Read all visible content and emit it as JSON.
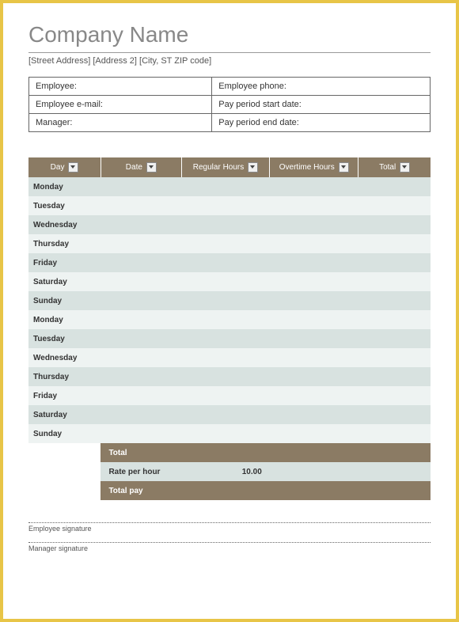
{
  "header": {
    "company_name": "Company Name",
    "address_parts": {
      "street": "[Street Address]",
      "address2": "[Address 2]",
      "city_state_zip": "[City, ST ZIP code]"
    }
  },
  "info": {
    "employee_label": "Employee:",
    "employee_phone_label": "Employee phone:",
    "employee_email_label": "Employee e-mail:",
    "pay_start_label": "Pay period start date:",
    "manager_label": "Manager:",
    "pay_end_label": "Pay period end date:"
  },
  "timesheet": {
    "columns": [
      {
        "label": "Day"
      },
      {
        "label": "Date"
      },
      {
        "label": "Regular Hours"
      },
      {
        "label": "Overtime Hours"
      },
      {
        "label": "Total"
      }
    ],
    "rows": [
      {
        "day": "Monday",
        "date": "",
        "regular": "",
        "overtime": "",
        "total": ""
      },
      {
        "day": "Tuesday",
        "date": "",
        "regular": "",
        "overtime": "",
        "total": ""
      },
      {
        "day": "Wednesday",
        "date": "",
        "regular": "",
        "overtime": "",
        "total": ""
      },
      {
        "day": "Thursday",
        "date": "",
        "regular": "",
        "overtime": "",
        "total": ""
      },
      {
        "day": "Friday",
        "date": "",
        "regular": "",
        "overtime": "",
        "total": ""
      },
      {
        "day": "Saturday",
        "date": "",
        "regular": "",
        "overtime": "",
        "total": ""
      },
      {
        "day": "Sunday",
        "date": "",
        "regular": "",
        "overtime": "",
        "total": ""
      },
      {
        "day": "Monday",
        "date": "",
        "regular": "",
        "overtime": "",
        "total": ""
      },
      {
        "day": "Tuesday",
        "date": "",
        "regular": "",
        "overtime": "",
        "total": ""
      },
      {
        "day": "Wednesday",
        "date": "",
        "regular": "",
        "overtime": "",
        "total": ""
      },
      {
        "day": "Thursday",
        "date": "",
        "regular": "",
        "overtime": "",
        "total": ""
      },
      {
        "day": "Friday",
        "date": "",
        "regular": "",
        "overtime": "",
        "total": ""
      },
      {
        "day": "Saturday",
        "date": "",
        "regular": "",
        "overtime": "",
        "total": ""
      },
      {
        "day": "Sunday",
        "date": "",
        "regular": "",
        "overtime": "",
        "total": ""
      }
    ],
    "summary": {
      "total_label": "Total",
      "rate_label": "Rate per hour",
      "rate_value": "10.00",
      "total_pay_label": "Total pay"
    }
  },
  "signatures": {
    "employee": "Employee signature",
    "manager": "Manager signature"
  },
  "colors": {
    "border": "#e8c547",
    "header_brown": "#8b7b64",
    "row_odd": "#d8e2e0",
    "row_even": "#eef3f2"
  }
}
